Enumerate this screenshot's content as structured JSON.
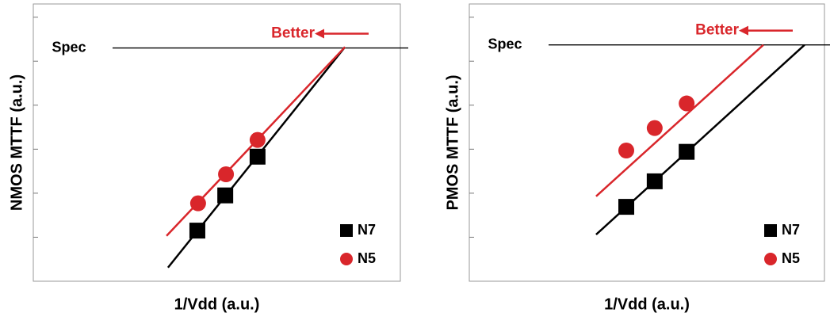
{
  "chart_data": [
    {
      "type": "scatter",
      "ylabel": "NMOS MTTF (a.u.)",
      "xlabel": "1/Vdd (a.u.)",
      "xlim": [
        0,
        10
      ],
      "ylim": [
        0,
        6.3
      ],
      "yticks": [
        1,
        2,
        3,
        4,
        5,
        6
      ],
      "reference_line": {
        "label": "Spec",
        "value": 5.3
      },
      "annotation": "Better",
      "series": [
        {
          "name": "N7",
          "color": "#000000",
          "marker": "square",
          "x": [
            4.47,
            5.23,
            6.11
          ],
          "values": [
            1.15,
            1.95,
            2.83
          ],
          "fit": {
            "x": [
              3.67,
              8.49
            ],
            "values": [
              0.31,
              5.32
            ]
          }
        },
        {
          "name": "N5",
          "color": "#d9262b",
          "marker": "circle",
          "x": [
            4.49,
            5.25,
            6.11
          ],
          "values": [
            1.77,
            2.43,
            3.21
          ],
          "fit": {
            "x": [
              3.63,
              8.49
            ],
            "values": [
              1.03,
              5.32
            ]
          }
        }
      ]
    },
    {
      "type": "scatter",
      "ylabel": "PMOS MTTF (a.u.)",
      "xlabel": "1/Vdd (a.u.)",
      "xlim": [
        0,
        10
      ],
      "ylim": [
        0,
        6.3
      ],
      "yticks": [
        1,
        2,
        3,
        4,
        5,
        6
      ],
      "reference_line": {
        "label": "Spec",
        "value": 5.37
      },
      "annotation": "Better",
      "series": [
        {
          "name": "N7",
          "color": "#000000",
          "marker": "square",
          "x": [
            4.42,
            5.22,
            6.12
          ],
          "values": [
            1.69,
            2.27,
            2.94
          ],
          "fit": {
            "x": [
              3.57,
              9.44
            ],
            "values": [
              1.06,
              5.37
            ]
          }
        },
        {
          "name": "N5",
          "color": "#d9262b",
          "marker": "circle",
          "x": [
            4.42,
            5.22,
            6.12
          ],
          "values": [
            2.97,
            3.48,
            4.04
          ],
          "fit": {
            "x": [
              3.57,
              8.28
            ],
            "values": [
              1.93,
              5.37
            ]
          }
        }
      ]
    }
  ]
}
